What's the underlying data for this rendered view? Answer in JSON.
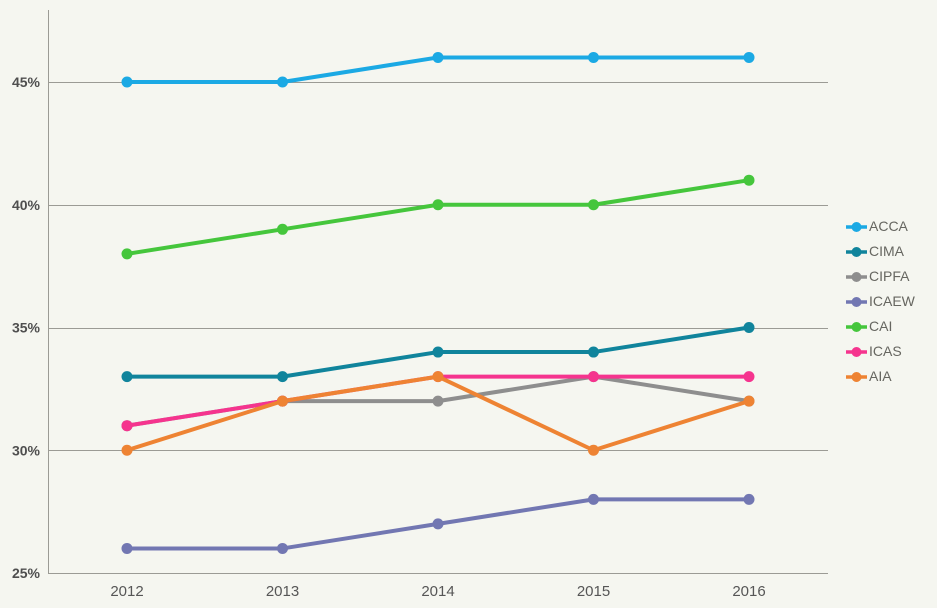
{
  "page": {
    "background_color": "#f5f6f0",
    "axis_color": "#9b9b95",
    "ytick_label_color": "#4f4f4f",
    "xtick_label_color": "#565656",
    "legend_text_color": "#666660"
  },
  "chart_data": {
    "type": "line",
    "title": "",
    "xlabel": "",
    "ylabel": "",
    "categories": [
      "2012",
      "2013",
      "2014",
      "2015",
      "2016"
    ],
    "series": [
      {
        "name": "ACCA",
        "color": "#1ba9e4",
        "values": [
          45,
          45,
          46,
          46,
          46
        ]
      },
      {
        "name": "CIMA",
        "color": "#10849c",
        "values": [
          33,
          33,
          34,
          34,
          35
        ]
      },
      {
        "name": "CIPFA",
        "color": "#8e8e8e",
        "values": [
          31,
          32,
          32,
          33,
          32
        ]
      },
      {
        "name": "ICAEW",
        "color": "#7277b2",
        "values": [
          26,
          26,
          27,
          28,
          28
        ]
      },
      {
        "name": "CAI",
        "color": "#45c63c",
        "values": [
          38,
          39,
          40,
          40,
          41
        ]
      },
      {
        "name": "ICAS",
        "color": "#f5348e",
        "values": [
          31,
          32,
          33,
          33,
          33
        ]
      },
      {
        "name": "AIA",
        "color": "#ee8333",
        "values": [
          30,
          32,
          33,
          30,
          32
        ]
      }
    ],
    "yticks": [
      25,
      30,
      35,
      40,
      45
    ],
    "ytick_labels": [
      "25%",
      "30%",
      "35%",
      "40%",
      "45%"
    ],
    "ylim": [
      25,
      48
    ],
    "grid": true,
    "legend_position": "right",
    "legend_entries": [
      "ACCA",
      "CIMA",
      "CIPFA",
      "ICAEW",
      "CAI",
      "ICAS",
      "AIA"
    ]
  }
}
